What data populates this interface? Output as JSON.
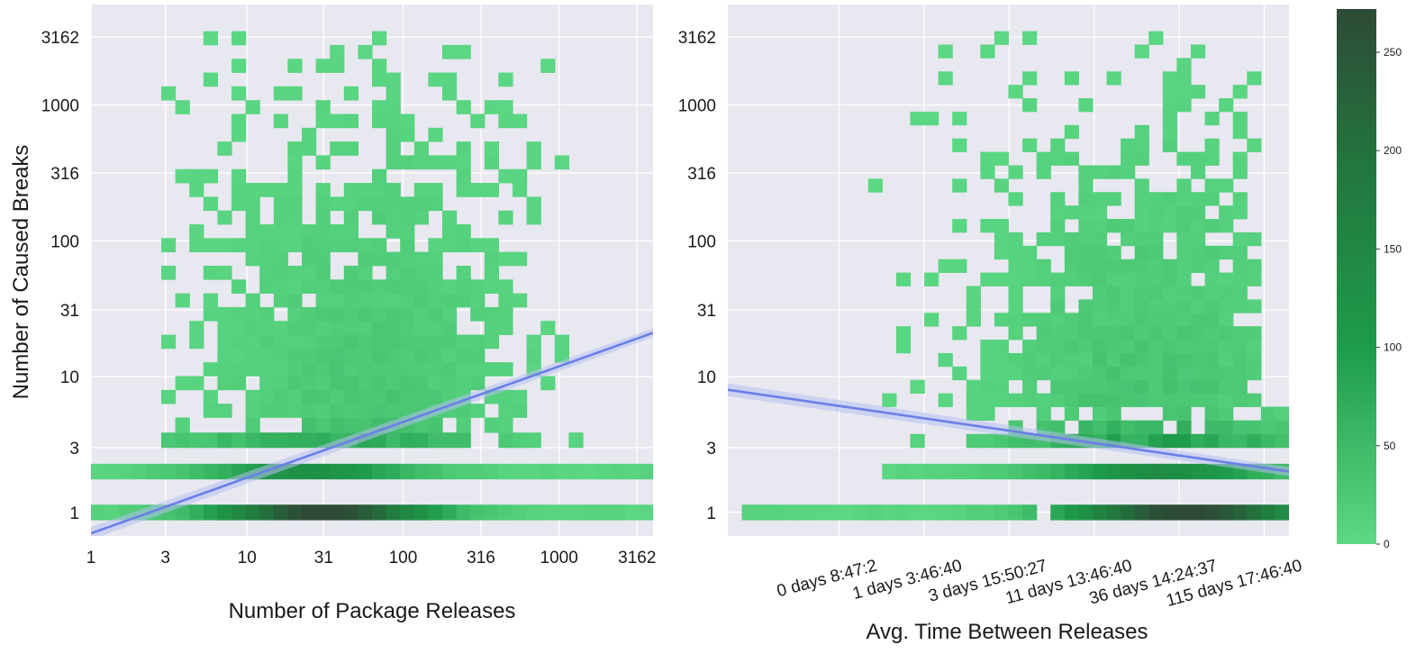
{
  "colors": {
    "plot_background": "#e8e8f0",
    "grid": "#ffffff",
    "cell_low": "#5dd884",
    "cell_mid": "#1e9b4b",
    "cell_high": "#2e4a36",
    "regression_line": "#6b7fe8",
    "confidence_band": "#b4bff0"
  },
  "chart_data": [
    {
      "type": "heatmap",
      "title": "",
      "xlabel": "Number of Package Releases",
      "ylabel": "Number of Caused Breaks",
      "x_scale": "log",
      "y_scale": "log",
      "xlim": [
        1,
        4000
      ],
      "ylim": [
        0.67,
        5500
      ],
      "x_ticks": [
        1,
        3,
        10,
        31,
        100,
        316,
        1000,
        3162
      ],
      "x_tick_labels": [
        "1",
        "3",
        "10",
        "31",
        "100",
        "316",
        "1000",
        "3162"
      ],
      "y_ticks": [
        1,
        3,
        10,
        31,
        100,
        316,
        1000,
        3162
      ],
      "y_tick_labels": [
        "1",
        "3",
        "10",
        "31",
        "100",
        "316",
        "1000",
        "3162"
      ],
      "grid": true,
      "regression": {
        "type": "line",
        "x": [
          1,
          4000
        ],
        "y": [
          0.7,
          21
        ]
      },
      "bands": [
        {
          "y": 1,
          "x_from": 1,
          "x_to": 3800,
          "peak_x": 31,
          "peak_count": 270
        },
        {
          "y": 2,
          "x_from": 1,
          "x_to": 3800,
          "peak_x": 25,
          "peak_count": 120
        },
        {
          "y_from": 3,
          "y_to": 5,
          "x_from": 2.5,
          "x_to": 1500,
          "peak_x": 40,
          "peak_count": 80
        },
        {
          "y_from": 5,
          "y_to": 3500,
          "x_from": 3,
          "x_to": 1200,
          "peak_x": 60,
          "peak_count": 30
        }
      ]
    },
    {
      "type": "heatmap",
      "title": "",
      "xlabel": "Avg. Time Between Releases",
      "ylabel": "",
      "x_scale": "log",
      "y_scale": "log",
      "xlim": [
        7000,
        14000000
      ],
      "ylim": [
        0.67,
        5500
      ],
      "x_ticks": [
        31622,
        100000,
        316227,
        1000000,
        3162277,
        10000000
      ],
      "x_tick_labels": [
        "0 days 8:47:2",
        "1 days 3:46:40",
        "3 days 15:50:27",
        "11 days 13:46:40",
        "36 days 14:24:37",
        "115 days 17:46:40"
      ],
      "y_ticks": [
        1,
        3,
        10,
        31,
        100,
        316,
        1000,
        3162
      ],
      "y_tick_labels": [
        "1",
        "3",
        "10",
        "31",
        "100",
        "316",
        "1000",
        "3162"
      ],
      "grid": true,
      "regression": {
        "type": "line",
        "x": [
          7000,
          14000000
        ],
        "y": [
          8,
          2
        ]
      },
      "bands": [
        {
          "y": 1,
          "x_from": 7000,
          "x_to": 14000000,
          "peak_x": 3500000,
          "peak_count": 270
        },
        {
          "y": 2,
          "x_from": 60000,
          "x_to": 14000000,
          "peak_x": 2500000,
          "peak_count": 130
        },
        {
          "y_from": 3,
          "y_to": 6,
          "x_from": 40000,
          "x_to": 14000000,
          "peak_x": 2500000,
          "peak_count": 90
        },
        {
          "y_from": 6,
          "y_to": 3500,
          "x_from": 50000,
          "x_to": 10000000,
          "peak_x": 2000000,
          "peak_count": 35
        }
      ]
    }
  ],
  "colorbar": {
    "min": 0,
    "max": 272,
    "ticks": [
      0,
      50,
      100,
      150,
      200,
      250
    ],
    "tick_labels": [
      "0",
      "50",
      "100",
      "150",
      "200",
      "250"
    ]
  }
}
